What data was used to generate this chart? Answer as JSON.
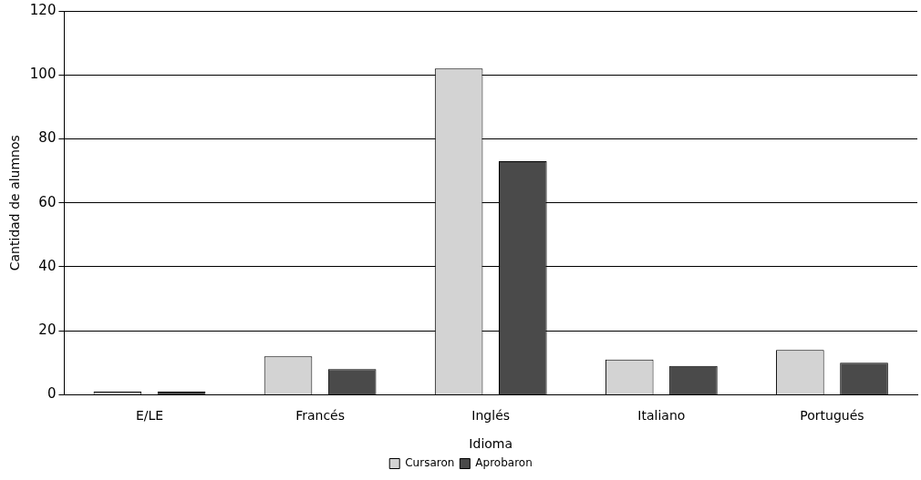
{
  "chart_data": {
    "type": "bar",
    "xlabel": "Idioma",
    "ylabel": "Cantidad de alumnos",
    "categories": [
      "E/LE",
      "Francés",
      "Inglés",
      "Italiano",
      "Portugués"
    ],
    "series": [
      {
        "name": "Cursaron",
        "color": "#d3d3d3",
        "values": [
          1,
          12,
          102,
          11,
          14
        ]
      },
      {
        "name": "Aprobaron",
        "color": "#4a4a4a",
        "values": [
          1,
          8,
          73,
          9,
          10
        ]
      }
    ],
    "ylim": [
      0,
      120
    ],
    "yticks": [
      0,
      20,
      40,
      60,
      80,
      100,
      120
    ],
    "grid": "y",
    "legend": "bottom"
  }
}
